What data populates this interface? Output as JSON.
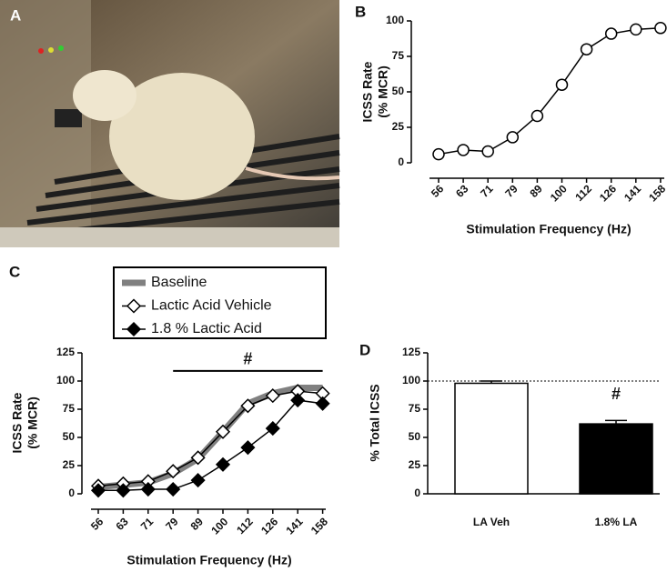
{
  "panel_labels": [
    "A",
    "B",
    "C",
    "D"
  ],
  "chart_data": [
    {
      "type": "line",
      "categories": [
        "56",
        "63",
        "71",
        "79",
        "89",
        "100",
        "112",
        "126",
        "141",
        "158"
      ],
      "values": [
        6,
        9,
        8,
        18,
        33,
        55,
        80,
        91,
        94,
        95
      ],
      "color": "#000000",
      "marker": "circle",
      "marker_fill": "#ffffff",
      "ylim": [
        0,
        100
      ],
      "yticks": [
        0,
        25,
        50,
        75,
        100
      ],
      "xlabel": "Stimulation Frequency (Hz)",
      "ylabel": [
        "ICSS Rate",
        "(% MCR)"
      ]
    },
    {
      "type": "line",
      "categories": [
        "56",
        "63",
        "71",
        "79",
        "89",
        "100",
        "112",
        "126",
        "141",
        "158"
      ],
      "series": [
        {
          "name": "Baseline",
          "color": "#808080",
          "marker": "none",
          "marker_fill": "#808080",
          "values": [
            6,
            8,
            10,
            18,
            31,
            55,
            80,
            89,
            94,
            94
          ]
        },
        {
          "name": "Lactic Acid Vehicle",
          "color": "#000000",
          "marker": "diamond",
          "marker_fill": "#ffffff",
          "values": [
            7,
            9,
            11,
            20,
            32,
            55,
            78,
            87,
            91,
            89
          ]
        },
        {
          "name": "1.8 % Lactic Acid",
          "color": "#000000",
          "marker": "diamond",
          "marker_fill": "#000000",
          "values": [
            3,
            3,
            4,
            4,
            12,
            26,
            41,
            58,
            83,
            80
          ]
        }
      ],
      "legend": "top",
      "ylim": [
        0,
        125
      ],
      "yticks": [
        0,
        25,
        50,
        75,
        100,
        125
      ],
      "annotation": {
        "text": "#",
        "from": "79",
        "to": "158",
        "y": 109
      },
      "xlabel": "Stimulation Frequency (Hz)",
      "ylabel": [
        "ICSS Rate",
        "(% MCR)"
      ]
    },
    {
      "type": "bar",
      "categories": [
        "LA Veh",
        "1.8% LA"
      ],
      "values": [
        98,
        62
      ],
      "errors": [
        2,
        3
      ],
      "colors": [
        "#ffffff",
        "#000000"
      ],
      "hline": 100,
      "annotation": {
        "text": "#",
        "category": "1.8% LA"
      },
      "ylim": [
        0,
        125
      ],
      "yticks": [
        0,
        25,
        50,
        75,
        100,
        125
      ],
      "ylabel": [
        "% Total ICSS"
      ]
    }
  ]
}
